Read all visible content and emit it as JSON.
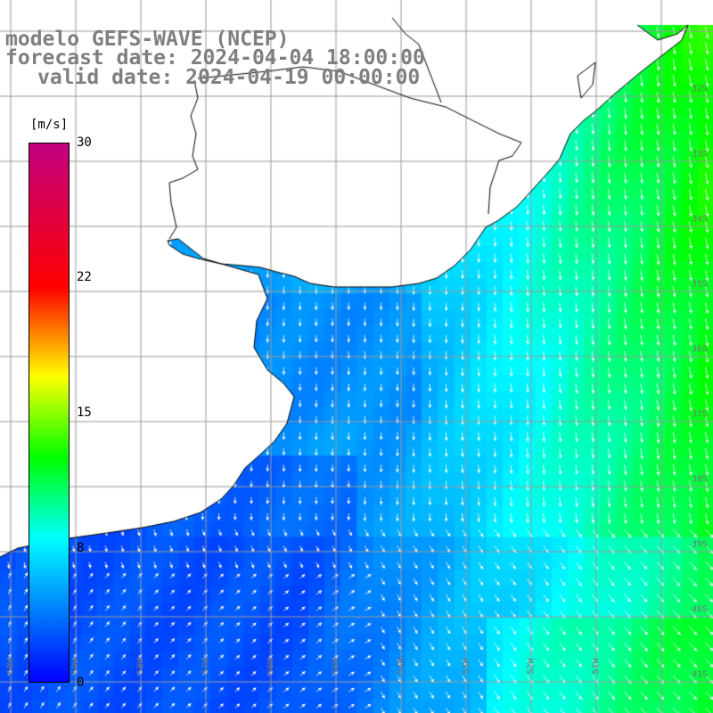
{
  "header": {
    "line1": "modelo GEFS-WAVE (NCEP)",
    "line2": "forecast date: 2024-04-04 18:00:00",
    "line3": "valid date: 2024-04-19 00:00:00"
  },
  "colorbar": {
    "unit": "[m/s]",
    "min": 0,
    "max": 30,
    "ticks": [
      "30",
      "22",
      "15",
      "8",
      "0"
    ],
    "stops": [
      "#0000ff",
      "#00ffff",
      "#00ff00",
      "#ffff00",
      "#ff0000",
      "#c00080"
    ]
  },
  "map": {
    "lat_labels": [
      "32S",
      "33S",
      "34S",
      "35S",
      "36S",
      "37S",
      "38S",
      "39S",
      "40S",
      "41S"
    ],
    "lon_labels": [
      "60W",
      "59W",
      "58W",
      "57W",
      "56W",
      "55W",
      "54W",
      "53W",
      "52W",
      "51W"
    ],
    "colors": {
      "land": "#ffffff",
      "coast": "#000000",
      "grid": "#9a9a9a"
    }
  }
}
